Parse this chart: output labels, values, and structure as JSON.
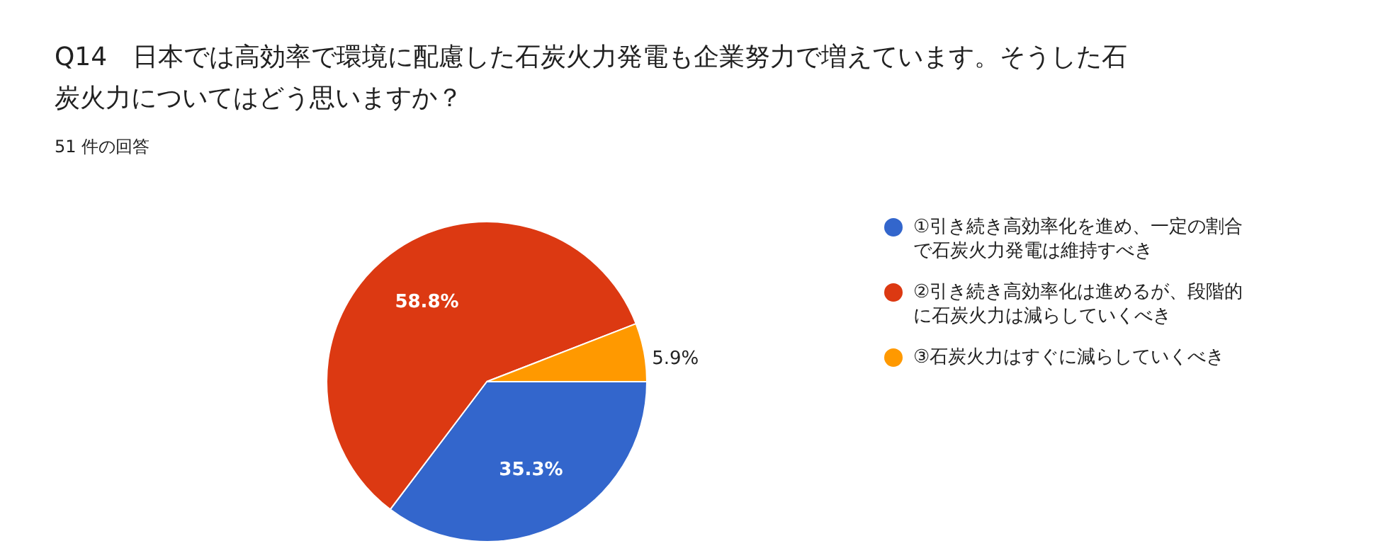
{
  "chart_data": {
    "type": "pie",
    "title": "Q14　日本では高効率で環境に配慮した石炭火力発電も企業努力で増えています。そうした石炭火力についてはどう思いますか？",
    "subtitle": "51 件の回答",
    "categories": [
      "①引き続き高効率化を進め、一定の割合で石炭火力発電は維持すべき",
      "②引き続き高効率化は進めるが、段階的に石炭火力は減らしていくべき",
      "③石炭火力はすぐに減らしていくべき"
    ],
    "values": [
      35.3,
      58.8,
      5.9
    ],
    "colors": [
      "#3366cc",
      "#dc3912",
      "#ff9900"
    ],
    "value_labels": [
      "35.3%",
      "58.8%",
      "5.9%"
    ],
    "legend": "right"
  }
}
